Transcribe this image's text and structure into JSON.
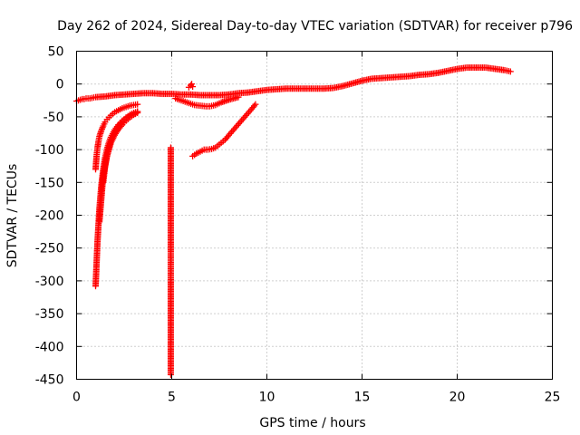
{
  "chart_data": {
    "type": "scatter",
    "title": "Day 262 of 2024, Sidereal Day-to-day VTEC variation (SDTVAR) for receiver p796",
    "xlabel": "GPS time / hours",
    "ylabel": "SDTVAR / TECUs",
    "xlim": [
      0,
      25
    ],
    "ylim": [
      -450,
      50
    ],
    "xticks": [
      0,
      5,
      10,
      15,
      20,
      25
    ],
    "yticks": [
      50,
      0,
      -50,
      -100,
      -150,
      -200,
      -250,
      -300,
      -350,
      -400,
      -450
    ],
    "grid": true,
    "marker": "plus",
    "color": "#ff0000",
    "series": [
      {
        "name": "main_track",
        "x": [
          0.0,
          0.1,
          0.2,
          0.3,
          0.4,
          0.5,
          0.6,
          0.7,
          1.0,
          1.5,
          2.0,
          2.5,
          3.0,
          3.5,
          4.0,
          4.5,
          5.0,
          5.5,
          6.0,
          6.5,
          7.0,
          7.5,
          8.0,
          8.5,
          9.0,
          9.5,
          10.0,
          10.5,
          11.0,
          11.5,
          12.0,
          12.5,
          13.0,
          13.5,
          14.0,
          14.5,
          15.0,
          15.5,
          16.0,
          16.5,
          17.0,
          17.5,
          18.0,
          18.5,
          19.0,
          19.5,
          20.0,
          20.5,
          21.0,
          21.5,
          22.0,
          22.5,
          22.8
        ],
        "y": [
          -26,
          -25,
          -24,
          -23,
          -23,
          -22,
          -22,
          -22,
          -20,
          -19,
          -17,
          -16,
          -15,
          -14,
          -14,
          -15,
          -15,
          -16,
          -16,
          -17,
          -17,
          -17,
          -16,
          -14,
          -13,
          -11,
          -9,
          -8,
          -7,
          -7,
          -7,
          -7,
          -7,
          -6,
          -3,
          1,
          5,
          8,
          9,
          10,
          11,
          12,
          14,
          15,
          17,
          20,
          23,
          25,
          25,
          25,
          23,
          21,
          19
        ]
      },
      {
        "name": "recovery_curve_1",
        "x": [
          1.0,
          1.05,
          1.1,
          1.15,
          1.2,
          1.3,
          1.4,
          1.5,
          1.6,
          1.8,
          2.0,
          2.2,
          2.4,
          2.6,
          2.8,
          3.0,
          3.2
        ],
        "y": [
          -130,
          -110,
          -97,
          -88,
          -80,
          -71,
          -64,
          -58,
          -54,
          -48,
          -43,
          -40,
          -37,
          -35,
          -33,
          -32,
          -31
        ]
      },
      {
        "name": "recovery_curve_2",
        "x": [
          1.0,
          1.1,
          1.2,
          1.3,
          1.4,
          1.5,
          1.6,
          1.7,
          1.8,
          2.0,
          2.2,
          2.4,
          2.6,
          2.8,
          3.0,
          3.2
        ],
        "y": [
          -308,
          -240,
          -190,
          -155,
          -130,
          -112,
          -99,
          -89,
          -81,
          -70,
          -62,
          -56,
          -51,
          -47,
          -44,
          -42
        ]
      },
      {
        "name": "recovery_curve_3",
        "x": [
          1.4,
          1.5,
          1.6,
          1.7,
          1.8,
          2.0,
          2.2,
          2.4,
          2.6,
          2.8,
          3.0,
          3.2
        ],
        "y": [
          -150,
          -125,
          -108,
          -96,
          -86,
          -74,
          -65,
          -58,
          -53,
          -48,
          -45,
          -42
        ]
      },
      {
        "name": "recovery_curve_4",
        "x": [
          1.2,
          1.4,
          1.6,
          1.8,
          2.0,
          2.2,
          2.4,
          2.6,
          2.8,
          3.0,
          3.2
        ],
        "y": [
          -210,
          -140,
          -110,
          -90,
          -78,
          -69,
          -62,
          -56,
          -51,
          -47,
          -44
        ]
      },
      {
        "name": "hour5_outliers",
        "x": [
          4.95,
          4.95,
          4.95,
          4.95,
          4.95,
          4.95,
          4.95
        ],
        "y": [
          -97,
          -117,
          -255,
          -272,
          -298,
          -438,
          -443
        ]
      },
      {
        "name": "dip_after_6h",
        "x": [
          5.2,
          5.5,
          5.8,
          6.0,
          6.2,
          6.5,
          6.8,
          7.0,
          7.3,
          7.6,
          8.0,
          8.5
        ],
        "y": [
          -22,
          -25,
          -28,
          -30,
          -32,
          -33,
          -34,
          -34,
          -32,
          -28,
          -24,
          -20
        ]
      },
      {
        "name": "spike_6h",
        "x": [
          5.9,
          6.0,
          6.05,
          6.1
        ],
        "y": [
          -5,
          -2,
          0,
          -4
        ]
      },
      {
        "name": "rising_segment",
        "x": [
          6.1,
          6.3,
          6.5,
          6.7,
          6.9,
          7.1,
          7.3,
          7.5,
          7.8,
          8.0,
          8.3,
          8.6,
          8.9,
          9.2,
          9.4
        ],
        "y": [
          -110,
          -106,
          -103,
          -100,
          -100,
          -99,
          -97,
          -92,
          -85,
          -78,
          -68,
          -58,
          -48,
          -38,
          -31
        ]
      }
    ]
  }
}
